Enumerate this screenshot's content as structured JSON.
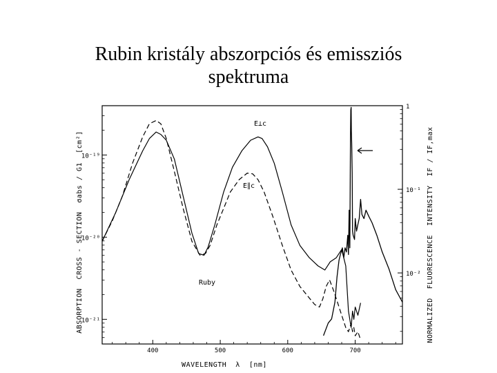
{
  "title": {
    "line1": "Rubin kristály abszorpciós és emissziós",
    "line2": "spektruma"
  },
  "chart_data": {
    "type": "line",
    "xlabel": "WAVELENGTH  λ  [nm]",
    "ylabel_left": "ABSORPTION  CROSS - SECTION  σabs / G1  [cm²]",
    "ylabel_right": "NORMALIZED  FLUORESCENCE  INTENSITY  IF / IF,max",
    "x_ticks": [
      "400",
      "500",
      "600",
      "700"
    ],
    "x_tick_values": [
      400,
      500,
      600,
      700
    ],
    "xlim": [
      325,
      770
    ],
    "y_left_ticks": [
      "10⁻¹⁹",
      "10⁻²⁰",
      "10⁻²¹"
    ],
    "y_left_tick_values": [
      -19,
      -20,
      -21
    ],
    "y_left_lim_log10": [
      -21.3,
      -18.4
    ],
    "y_right_ticks": [
      "1",
      "10⁻¹",
      "10⁻²"
    ],
    "y_right_tick_values": [
      0,
      -1,
      -2
    ],
    "y_right_lim_log10": [
      -2.85,
      0
    ],
    "annotations": {
      "perp": "E⊥c",
      "par": "E∥c",
      "material": "Ruby"
    },
    "series": [
      {
        "name": "E⊥c",
        "style": "solid",
        "axis": "left",
        "x": [
          325,
          345,
          365,
          385,
          395,
          405,
          412,
          420,
          432,
          445,
          458,
          468,
          476,
          482,
          492,
          505,
          518,
          532,
          545,
          556,
          562,
          570,
          580,
          592,
          605,
          618,
          632,
          645,
          655,
          663,
          672,
          680,
          686,
          690,
          694,
          696,
          698,
          700,
          704,
          708
        ],
        "y": [
          -20.05,
          -19.7,
          -19.3,
          -18.95,
          -18.8,
          -18.72,
          -18.75,
          -18.82,
          -19.05,
          -19.5,
          -19.95,
          -20.2,
          -20.22,
          -20.12,
          -19.85,
          -19.45,
          -19.15,
          -18.95,
          -18.82,
          -18.78,
          -18.8,
          -18.9,
          -19.1,
          -19.45,
          -19.85,
          -20.1,
          -20.25,
          -20.35,
          -20.4,
          -20.3,
          -20.25,
          -20.15,
          -20.35,
          -20.9,
          -21.1,
          -20.9,
          -21.0,
          -20.85,
          -20.95,
          -20.8
        ]
      },
      {
        "name": "E∥c",
        "style": "dashed",
        "axis": "left",
        "x": [
          325,
          340,
          355,
          370,
          385,
          395,
          405,
          412,
          420,
          432,
          445,
          458,
          470,
          478,
          485,
          495,
          505,
          515,
          528,
          540,
          548,
          556,
          565,
          578,
          592,
          605,
          618,
          630,
          640,
          647,
          652,
          657,
          662,
          668,
          674,
          680,
          686,
          690,
          694,
          696,
          698,
          700,
          704,
          708
        ],
        "y": [
          -20.05,
          -19.8,
          -19.5,
          -19.1,
          -18.78,
          -18.62,
          -18.58,
          -18.62,
          -18.8,
          -19.2,
          -19.65,
          -20.05,
          -20.22,
          -20.2,
          -20.1,
          -19.85,
          -19.65,
          -19.45,
          -19.3,
          -19.22,
          -19.23,
          -19.3,
          -19.45,
          -19.75,
          -20.1,
          -20.4,
          -20.6,
          -20.72,
          -20.82,
          -20.85,
          -20.75,
          -20.6,
          -20.52,
          -20.65,
          -20.8,
          -20.95,
          -21.1,
          -21.15,
          -21.05,
          -21.15,
          -21.1,
          -21.2,
          -21.15,
          -21.25
        ]
      },
      {
        "name": "Fluorescence (Ruby)",
        "style": "solid",
        "axis": "right",
        "x": [
          653,
          660,
          665,
          670,
          673,
          676,
          678,
          681,
          683,
          685,
          687,
          689,
          690,
          691,
          692,
          693,
          693.5,
          694,
          694.3,
          694.8,
          695.5,
          696,
          697,
          699,
          700,
          702,
          704,
          706,
          708,
          710,
          713,
          716,
          720,
          725,
          732,
          740,
          750,
          760,
          770
        ],
        "y": [
          -2.75,
          -2.6,
          -2.55,
          -2.35,
          -2.05,
          -1.85,
          -1.78,
          -1.7,
          -1.82,
          -1.7,
          -1.75,
          -1.55,
          -1.78,
          -1.25,
          -1.7,
          -0.4,
          -0.05,
          -0.02,
          -0.3,
          -0.45,
          -0.8,
          -1.5,
          -1.55,
          -1.6,
          -1.35,
          -1.5,
          -1.42,
          -1.35,
          -1.12,
          -1.3,
          -1.35,
          -1.25,
          -1.32,
          -1.4,
          -1.55,
          -1.75,
          -1.95,
          -2.2,
          -2.35
        ]
      }
    ]
  }
}
